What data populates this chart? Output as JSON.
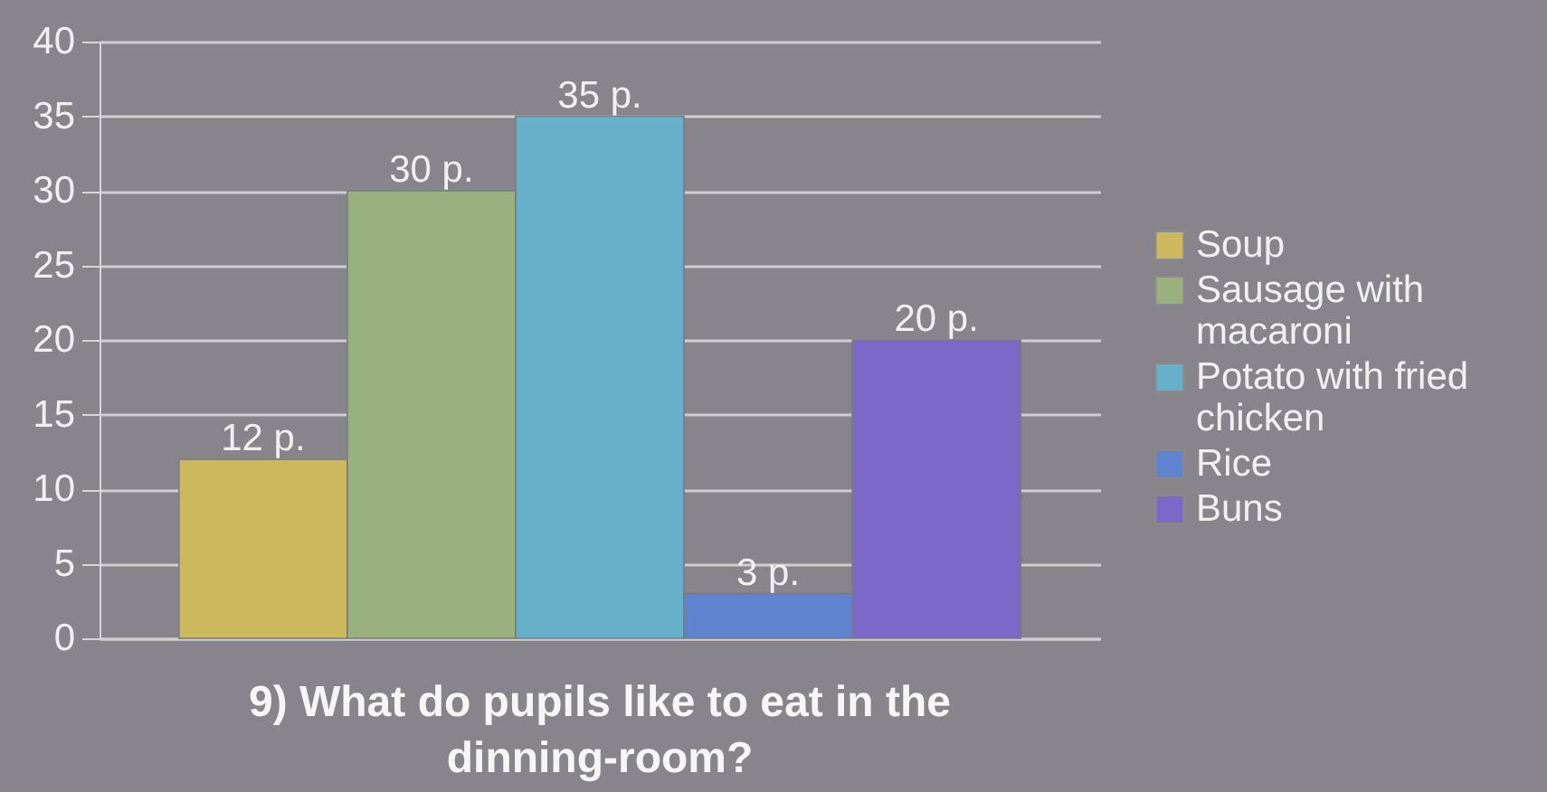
{
  "chart_data": {
    "type": "bar",
    "title": "9) What do pupils like to eat in the dinning-room?",
    "categories": [
      null
    ],
    "series": [
      {
        "name": "Soup",
        "color": "#cdb95d",
        "values": [
          12
        ],
        "value_labels": [
          "12 p."
        ]
      },
      {
        "name": "Sausage with macaroni",
        "color": "#9bb07f",
        "values": [
          30
        ],
        "value_labels": [
          "30 p."
        ]
      },
      {
        "name": "Potato with fried chicken",
        "color": "#66b0c9",
        "values": [
          35
        ],
        "value_labels": [
          "35 p."
        ]
      },
      {
        "name": "Rice",
        "color": "#5f83cf",
        "values": [
          3
        ],
        "value_labels": [
          "3 p."
        ]
      },
      {
        "name": "Buns",
        "color": "#7c68c8",
        "values": [
          20
        ],
        "value_labels": [
          "20 p."
        ]
      }
    ],
    "ylim": [
      0,
      40
    ],
    "yticks": [
      0,
      5,
      10,
      15,
      20,
      25,
      30,
      35,
      40
    ],
    "grid": "y",
    "legend": "right"
  }
}
